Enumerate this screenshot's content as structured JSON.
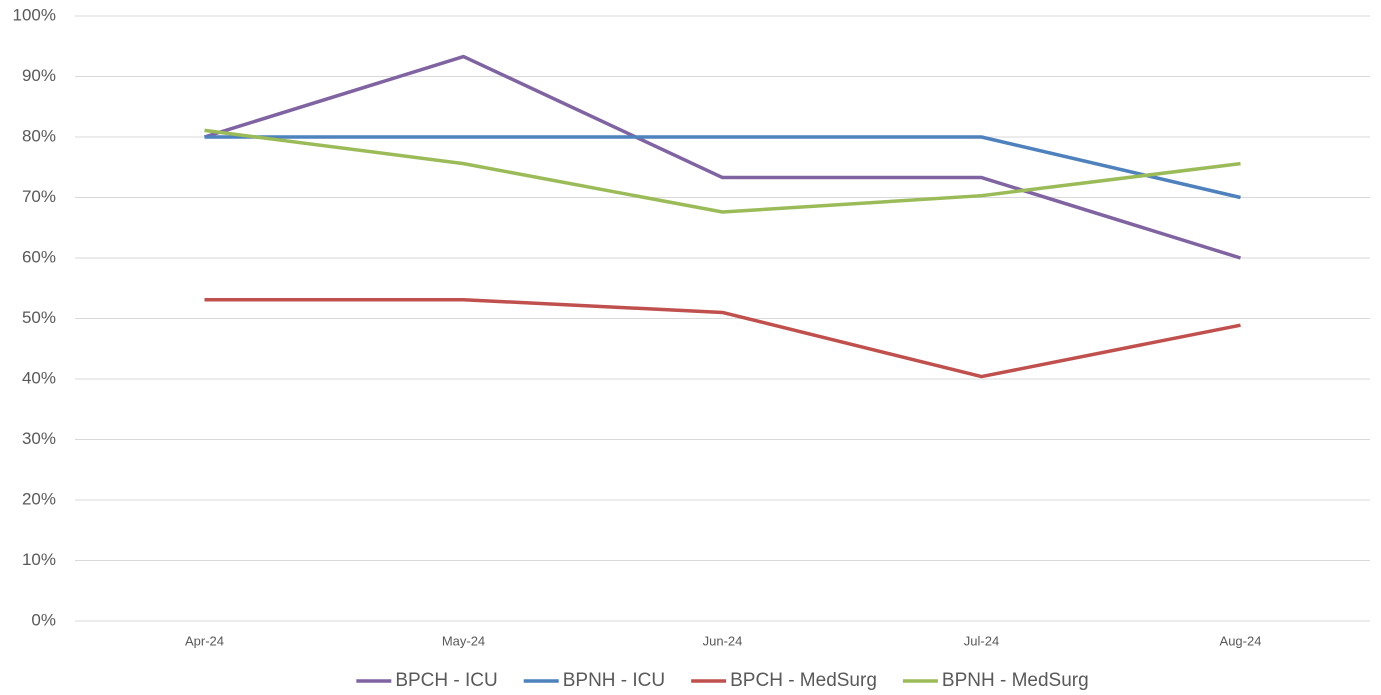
{
  "chart_data": {
    "type": "line",
    "categories": [
      "Apr-24",
      "May-24",
      "Jun-24",
      "Jul-24",
      "Aug-24"
    ],
    "series": [
      {
        "name": "BPCH - ICU",
        "color": "#8064a2",
        "values": [
          80,
          93.3,
          73.3,
          73.3,
          60
        ]
      },
      {
        "name": "BPNH - ICU",
        "color": "#4f81bd",
        "values": [
          80,
          80,
          80,
          80,
          70
        ]
      },
      {
        "name": "BPCH - MedSurg",
        "color": "#c0504d",
        "values": [
          53.1,
          53.1,
          51,
          40.4,
          48.9
        ]
      },
      {
        "name": "BPNH - MedSurg",
        "color": "#9bbb59",
        "values": [
          81.1,
          75.6,
          67.6,
          70.3,
          75.6
        ]
      }
    ],
    "ylim": [
      0,
      100
    ],
    "yticks": [
      {
        "value": 0,
        "label": "0%"
      },
      {
        "value": 10,
        "label": "10%"
      },
      {
        "value": 20,
        "label": "20%"
      },
      {
        "value": 30,
        "label": "30%"
      },
      {
        "value": 40,
        "label": "40%"
      },
      {
        "value": 50,
        "label": "50%"
      },
      {
        "value": 60,
        "label": "60%"
      },
      {
        "value": 70,
        "label": "70%"
      },
      {
        "value": 80,
        "label": "80%"
      },
      {
        "value": 90,
        "label": "90%"
      },
      {
        "value": 100,
        "label": "100%"
      }
    ],
    "grid": true,
    "legend": "bottom"
  }
}
